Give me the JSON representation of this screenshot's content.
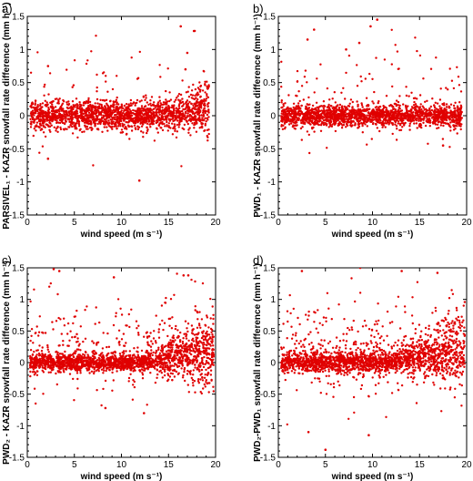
{
  "chart_data": [
    {
      "type": "scatter",
      "panel_label": "a)",
      "xlabel": "wind speed (m s⁻¹)",
      "ylabel": "PARSIVEL₁ - KAZR  snowfall rate difference (mm h⁻¹)",
      "xlim": [
        0,
        20
      ],
      "ylim": [
        -1.5,
        1.5
      ],
      "xticks": [
        0,
        5,
        10,
        15,
        20
      ],
      "yticks": [
        -1.5,
        -1,
        -0.5,
        0,
        0.5,
        1,
        1.5
      ],
      "xtick_labels": [
        "0",
        "5",
        "10",
        "15",
        "20"
      ],
      "ytick_labels": [
        "-1.5",
        "-1",
        "-0.5",
        "0",
        "0.5",
        "1",
        "1.5"
      ],
      "grid": false,
      "marker_color": "#e00000",
      "distribution": {
        "x_min": 0.3,
        "x_max": 19.3,
        "core_sd": 0.11,
        "outlier_frac": 0.05,
        "rise_start": 15,
        "rise_amp": 0.45,
        "clip_low": -1.0,
        "clip_high": 1.3,
        "n": 1900
      },
      "highlighted_points": [
        [
          2.2,
          0.75
        ],
        [
          16.3,
          1.35
        ],
        [
          17.7,
          1.28
        ],
        [
          17.0,
          0.95
        ],
        [
          11.9,
          -0.98
        ],
        [
          2.2,
          -0.65
        ],
        [
          16.8,
          0.7
        ]
      ]
    },
    {
      "type": "scatter",
      "panel_label": "b)",
      "xlabel": "wind speed (m s⁻¹)",
      "ylabel": "PWD₁ - KAZR  snowfall rate difference (mm h⁻¹)",
      "xlim": [
        0,
        20
      ],
      "ylim": [
        -1.5,
        1.5
      ],
      "xticks": [
        0,
        5,
        10,
        15,
        20
      ],
      "yticks": [
        -1.5,
        -1,
        -0.5,
        0,
        0.5,
        1,
        1.5
      ],
      "xtick_labels": [
        "0",
        "5",
        "10",
        "15",
        "20"
      ],
      "ytick_labels": [
        "-1.5",
        "-1",
        "-0.5",
        "0",
        "0.5",
        "1",
        "1.5"
      ],
      "grid": false,
      "marker_color": "#e00000",
      "distribution": {
        "x_min": 0.3,
        "x_max": 19.5,
        "core_sd": 0.08,
        "outlier_frac": 0.07,
        "rise_start": 20,
        "rise_amp": 0,
        "clip_low": -0.65,
        "clip_high": 1.45,
        "n": 1900
      },
      "highlighted_points": [
        [
          10.5,
          1.45
        ],
        [
          3.8,
          1.3
        ],
        [
          9.8,
          1.35
        ],
        [
          7.2,
          1.0
        ],
        [
          8.6,
          1.1
        ],
        [
          3.1,
          1.15
        ],
        [
          17.5,
          -0.45
        ]
      ]
    },
    {
      "type": "scatter",
      "panel_label": "c)",
      "xlabel": "wind speed (m s⁻¹)",
      "ylabel": "PWD₂ - KAZR  snowfall rate difference (mm h⁻¹)",
      "xlim": [
        0,
        20
      ],
      "ylim": [
        -1.5,
        1.5
      ],
      "xticks": [
        0,
        5,
        10,
        15,
        20
      ],
      "yticks": [
        -1.5,
        -1,
        -0.5,
        0,
        0.5,
        1,
        1.5
      ],
      "xtick_labels": [
        "0",
        "5",
        "10",
        "15",
        "20"
      ],
      "ytick_labels": [
        "-1.5",
        "-1",
        "-0.5",
        "0",
        "0.5",
        "1",
        "1.5"
      ],
      "grid": false,
      "marker_color": "#e00000",
      "distribution": {
        "x_min": 0.3,
        "x_max": 19.8,
        "core_sd": 0.07,
        "outlier_frac": 0.16,
        "rise_start": 12,
        "rise_amp": 0.6,
        "clip_low": -0.8,
        "clip_high": 1.5,
        "n": 2100
      },
      "highlighted_points": [
        [
          2.8,
          1.48
        ],
        [
          3.4,
          1.45
        ],
        [
          9.2,
          1.35
        ],
        [
          16.6,
          1.38
        ],
        [
          17.1,
          1.38
        ],
        [
          12.4,
          -0.8
        ],
        [
          8.3,
          -0.72
        ]
      ]
    },
    {
      "type": "scatter",
      "panel_label": "d)",
      "xlabel": "wind speed (m s⁻¹)",
      "ylabel": "PWD₂-PWD₁ snowfall rate difference (mm h⁻¹)",
      "xlim": [
        0,
        20
      ],
      "ylim": [
        -1.5,
        1.5
      ],
      "xticks": [
        0,
        5,
        10,
        15,
        20
      ],
      "yticks": [
        -1.5,
        -1,
        -0.5,
        0,
        0.5,
        1,
        1.5
      ],
      "xtick_labels": [
        "0",
        "5",
        "10",
        "15",
        "20"
      ],
      "ytick_labels": [
        "-1.5",
        "-1",
        "-0.5",
        "0",
        "0.5",
        "1",
        "1.5"
      ],
      "grid": false,
      "marker_color": "#e00000",
      "distribution": {
        "x_min": 0.3,
        "x_max": 19.8,
        "core_sd": 0.08,
        "outlier_frac": 0.2,
        "rise_start": 12,
        "rise_amp": 0.6,
        "clip_low": -1.3,
        "clip_high": 1.5,
        "n": 2100
      },
      "highlighted_points": [
        [
          3.2,
          -1.1
        ],
        [
          5.0,
          -1.38
        ],
        [
          2.5,
          1.45
        ],
        [
          13.1,
          1.45
        ],
        [
          8.7,
          1.5
        ],
        [
          9.6,
          -1.15
        ],
        [
          16.9,
          1.42
        ]
      ]
    }
  ]
}
